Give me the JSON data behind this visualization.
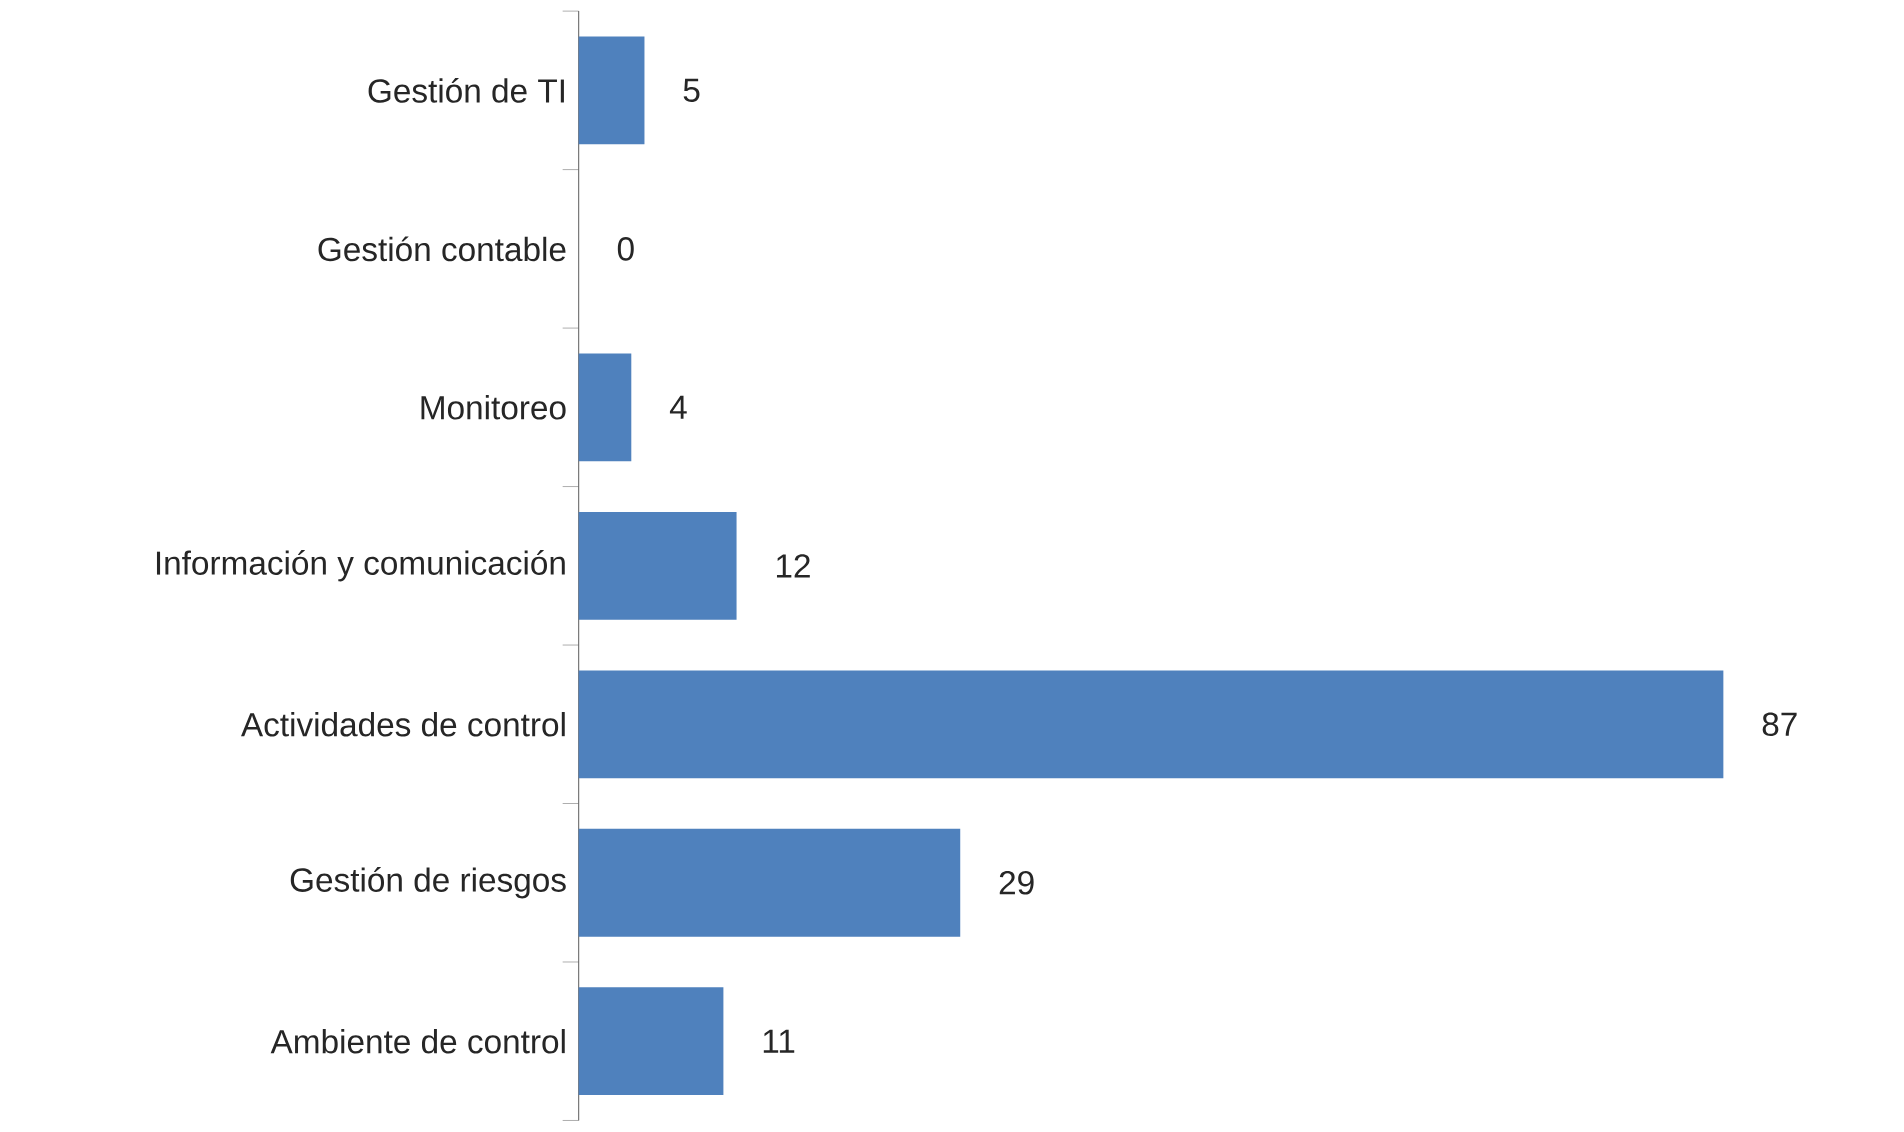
{
  "chart_data": {
    "type": "bar",
    "orientation": "horizontal",
    "categories": [
      "Gestión de TI",
      "Gestión contable",
      "Monitoreo",
      "Información y comunicación",
      "Actividades de control",
      "Gestión de riesgos",
      "Ambiente de control"
    ],
    "values": [
      5,
      0,
      4,
      12,
      87,
      29,
      11
    ],
    "color": "#4f81bd",
    "data_labels": true
  }
}
